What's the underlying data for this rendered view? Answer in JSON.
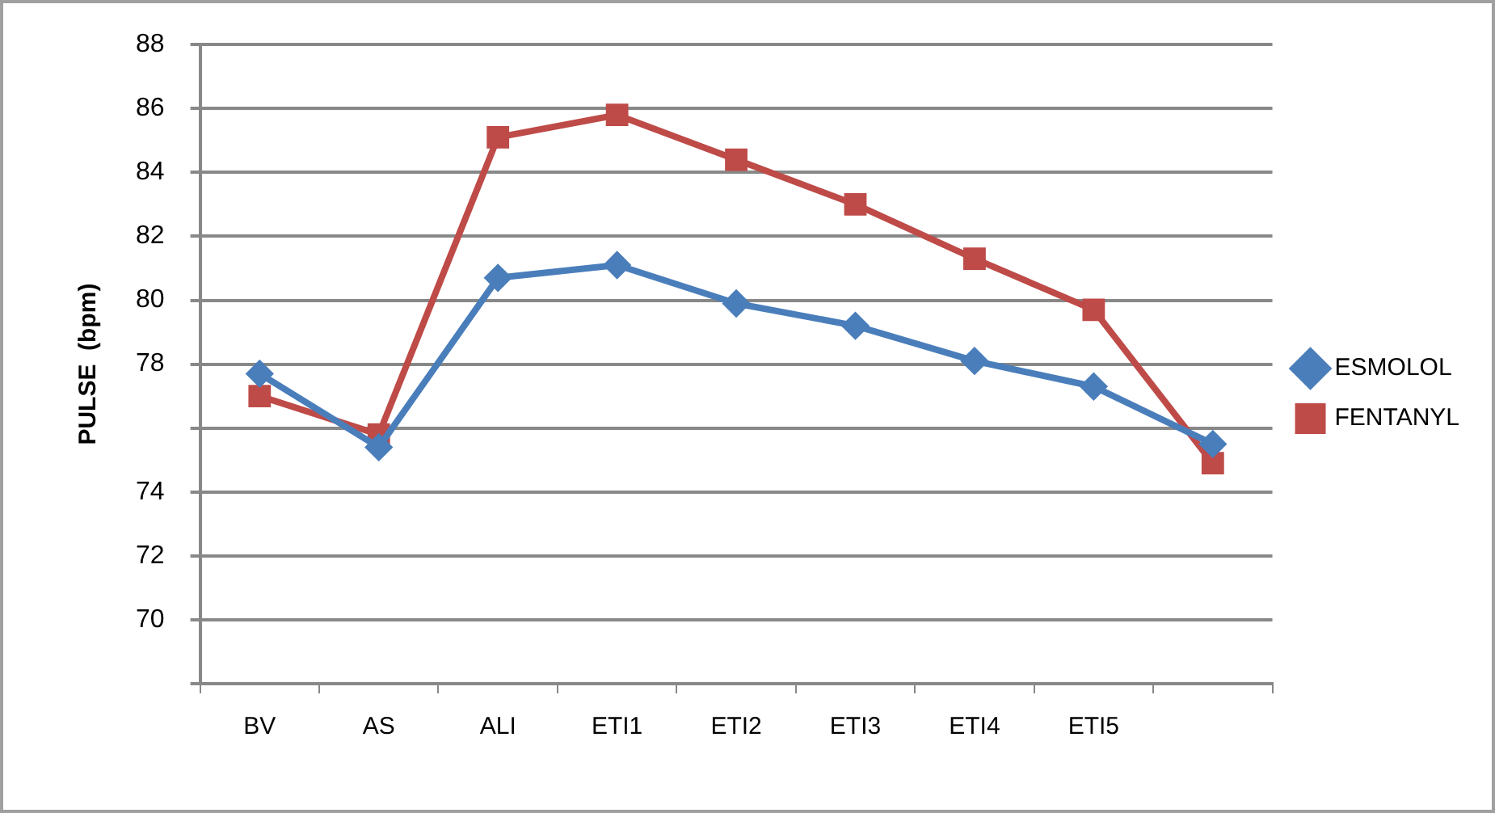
{
  "chart_data": {
    "type": "line",
    "ylabel": "PULSE  (bpm)",
    "categories": [
      "BV",
      "AS",
      "ALI",
      "ETI1",
      "ETI2",
      "ETI3",
      "ETI4",
      "ETI5",
      null
    ],
    "series": [
      {
        "name": "ESMOLOL",
        "color": "#4a7ebb",
        "marker": "diamond",
        "values": [
          77.7,
          75.4,
          80.7,
          81.1,
          79.9,
          79.2,
          78.1,
          77.3,
          75.5
        ]
      },
      {
        "name": "FENTANYL",
        "color": "#be4b48",
        "marker": "square",
        "values": [
          77.0,
          75.8,
          85.1,
          85.8,
          84.4,
          83.0,
          81.3,
          79.7,
          74.9
        ]
      }
    ],
    "ylim": [
      68,
      88
    ],
    "yticks": [
      {
        "value": 68,
        "label": null
      },
      70,
      72,
      74,
      {
        "value": 76,
        "label": null
      },
      78,
      80,
      82,
      84,
      86,
      88
    ],
    "grid": "y",
    "legend": "right",
    "line_style": "solid"
  }
}
